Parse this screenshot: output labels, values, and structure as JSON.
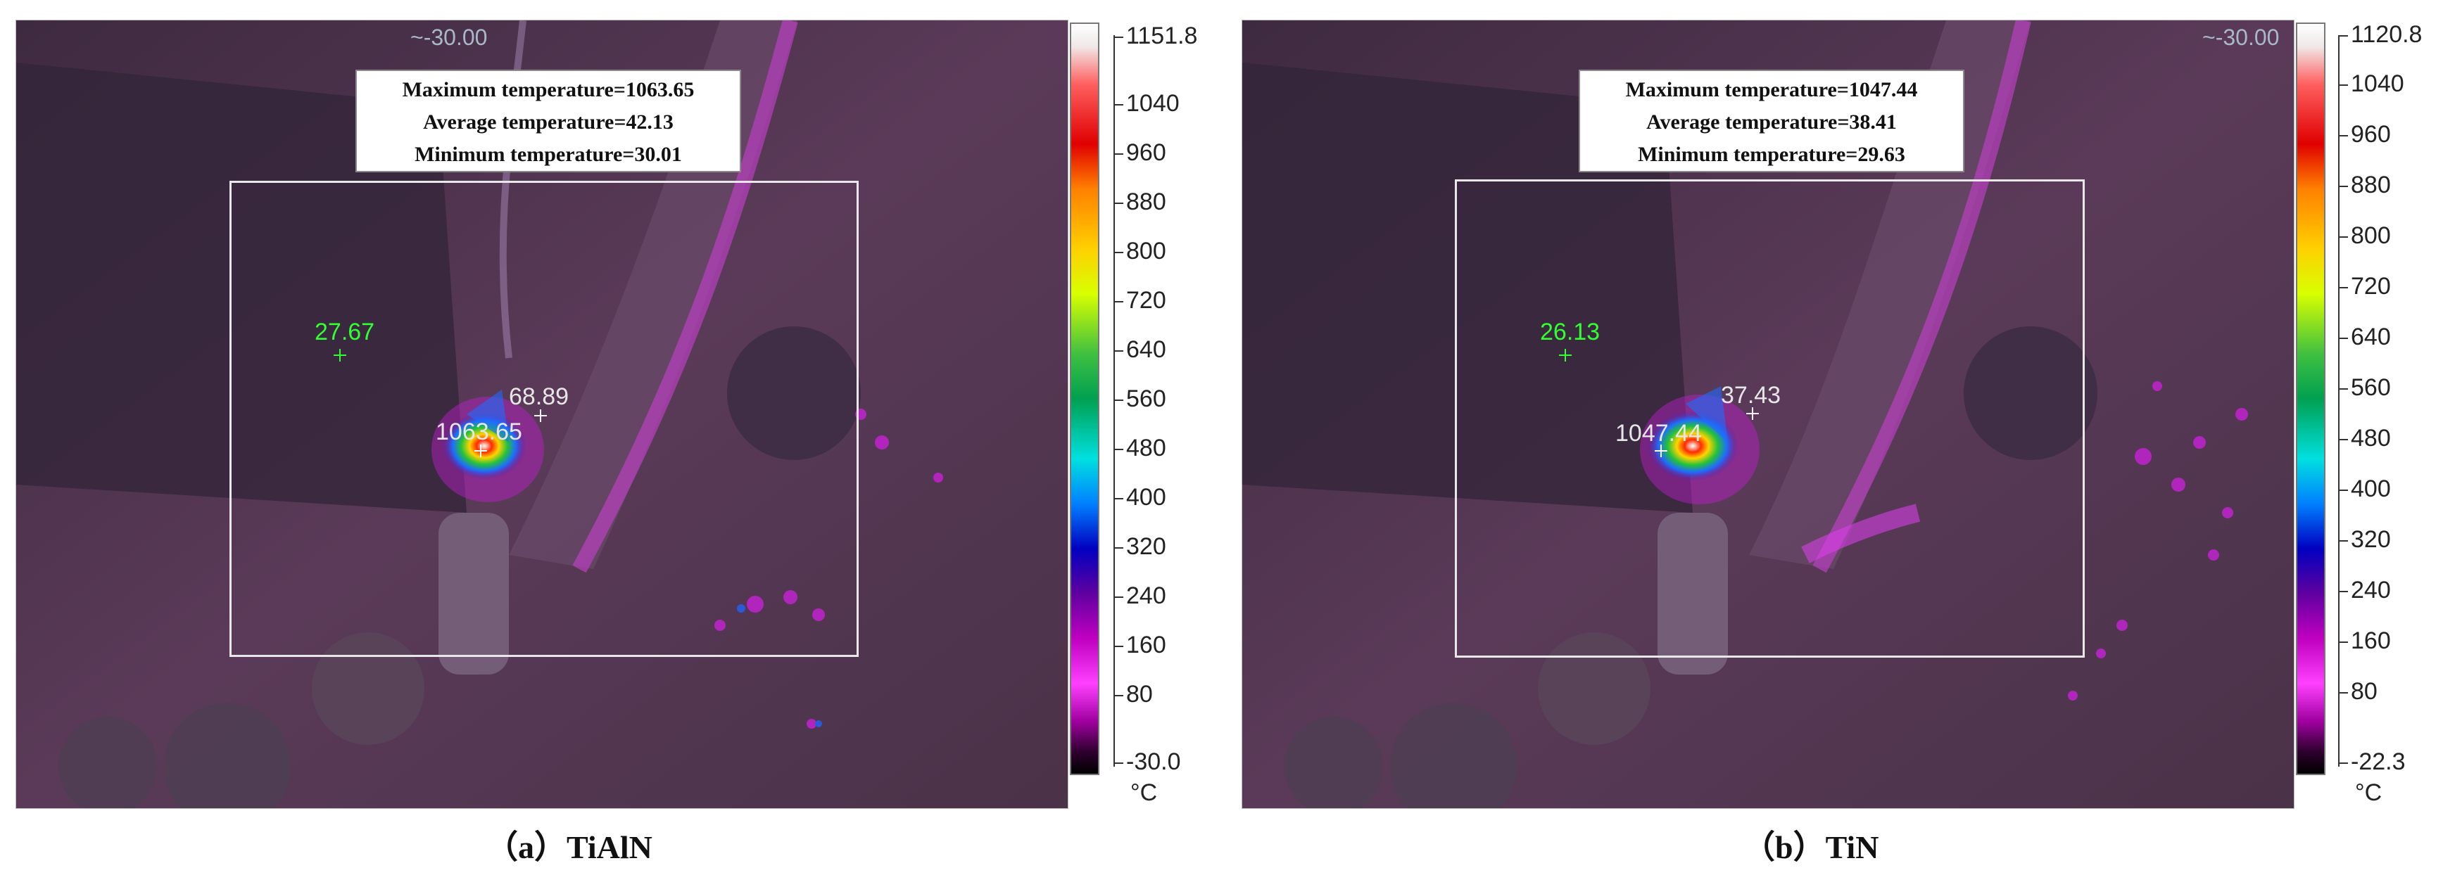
{
  "colors": {
    "background": "#4a3048",
    "hot_spot": "#ff00ff",
    "region_box": "#e8e8e8",
    "spot_min_label": "#32ff32",
    "spot_label": "#e6e6e6"
  },
  "panels": [
    {
      "caption": "（a）TiAlN",
      "corner_readout": "~-30.00",
      "stats": {
        "max": "Maximum temperature=1063.65",
        "avg": "Average temperature=42.13",
        "min": "Minimum temperature=30.01"
      },
      "spot_min": "27.67",
      "spot_hot": "1063.65",
      "spot_mid": "68.89",
      "scale": {
        "top": "1151.8",
        "ticks": [
          "1040",
          "960",
          "880",
          "800",
          "720",
          "640",
          "560",
          "480",
          "400",
          "320",
          "240",
          "160",
          "80"
        ],
        "bottom": "-30.0",
        "unit": "°C"
      }
    },
    {
      "caption": "（b）TiN",
      "corner_readout": "~-30.00",
      "stats": {
        "max": "Maximum temperature=1047.44",
        "avg": "Average temperature=38.41",
        "min": "Minimum temperature=29.63"
      },
      "spot_min": "26.13",
      "spot_hot": "1047.44",
      "spot_mid": "37.43",
      "scale": {
        "top": "1120.8",
        "ticks": [
          "1040",
          "960",
          "880",
          "800",
          "720",
          "640",
          "560",
          "480",
          "400",
          "320",
          "240",
          "160",
          "80"
        ],
        "bottom": "-22.3",
        "unit": "°C"
      }
    }
  ]
}
